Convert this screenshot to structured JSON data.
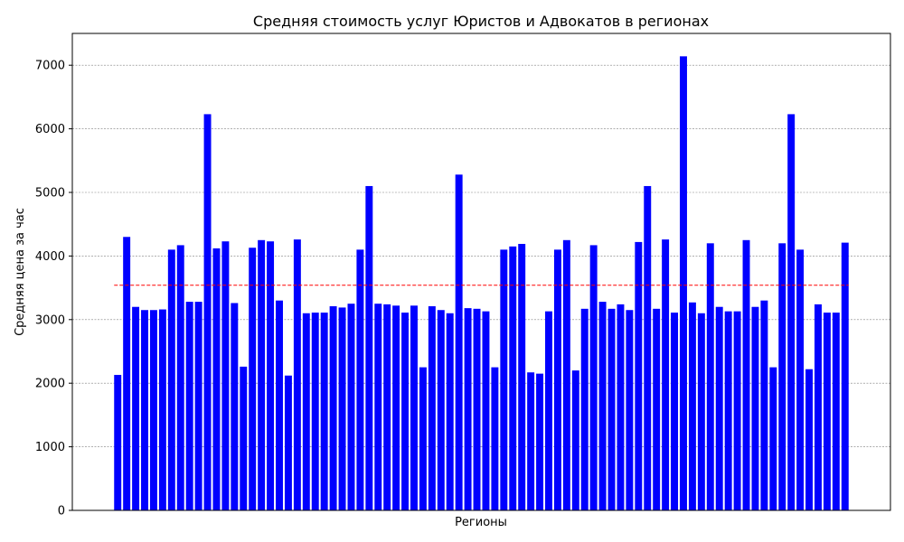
{
  "chart_data": {
    "type": "bar",
    "title": "Средняя стоимость услуг Юристов и Адвокатов в регионах",
    "xlabel": "Регионы",
    "ylabel": "Средняя цена за час",
    "ylim": [
      0,
      7500
    ],
    "yticks": [
      0,
      1000,
      2000,
      3000,
      4000,
      5000,
      6000,
      7000
    ],
    "grid": "y",
    "bar_color": "#0000ff",
    "reference_line": {
      "value": 3540,
      "color": "#ff0000",
      "style": "dashed"
    },
    "values": [
      2130,
      4300,
      3200,
      3150,
      3150,
      3160,
      4100,
      4170,
      3280,
      3280,
      6230,
      4120,
      4230,
      3260,
      2260,
      4130,
      4250,
      4230,
      3300,
      2120,
      4260,
      3100,
      3110,
      3110,
      3210,
      3190,
      3250,
      4100,
      5100,
      3250,
      3240,
      3220,
      3110,
      3220,
      2250,
      3210,
      3150,
      3100,
      5280,
      3180,
      3170,
      3130,
      2250,
      4100,
      4150,
      4190,
      2170,
      2150,
      3130,
      4100,
      4250,
      2200,
      3170,
      4170,
      3280,
      3170,
      3240,
      3150,
      4220,
      5100,
      3170,
      4260,
      3110,
      7140,
      3270,
      3100,
      4200,
      3200,
      3130,
      3130,
      4250,
      3200,
      3300,
      2250,
      4200,
      6230,
      4100,
      2220,
      3240,
      3110,
      3110,
      4210
    ]
  }
}
